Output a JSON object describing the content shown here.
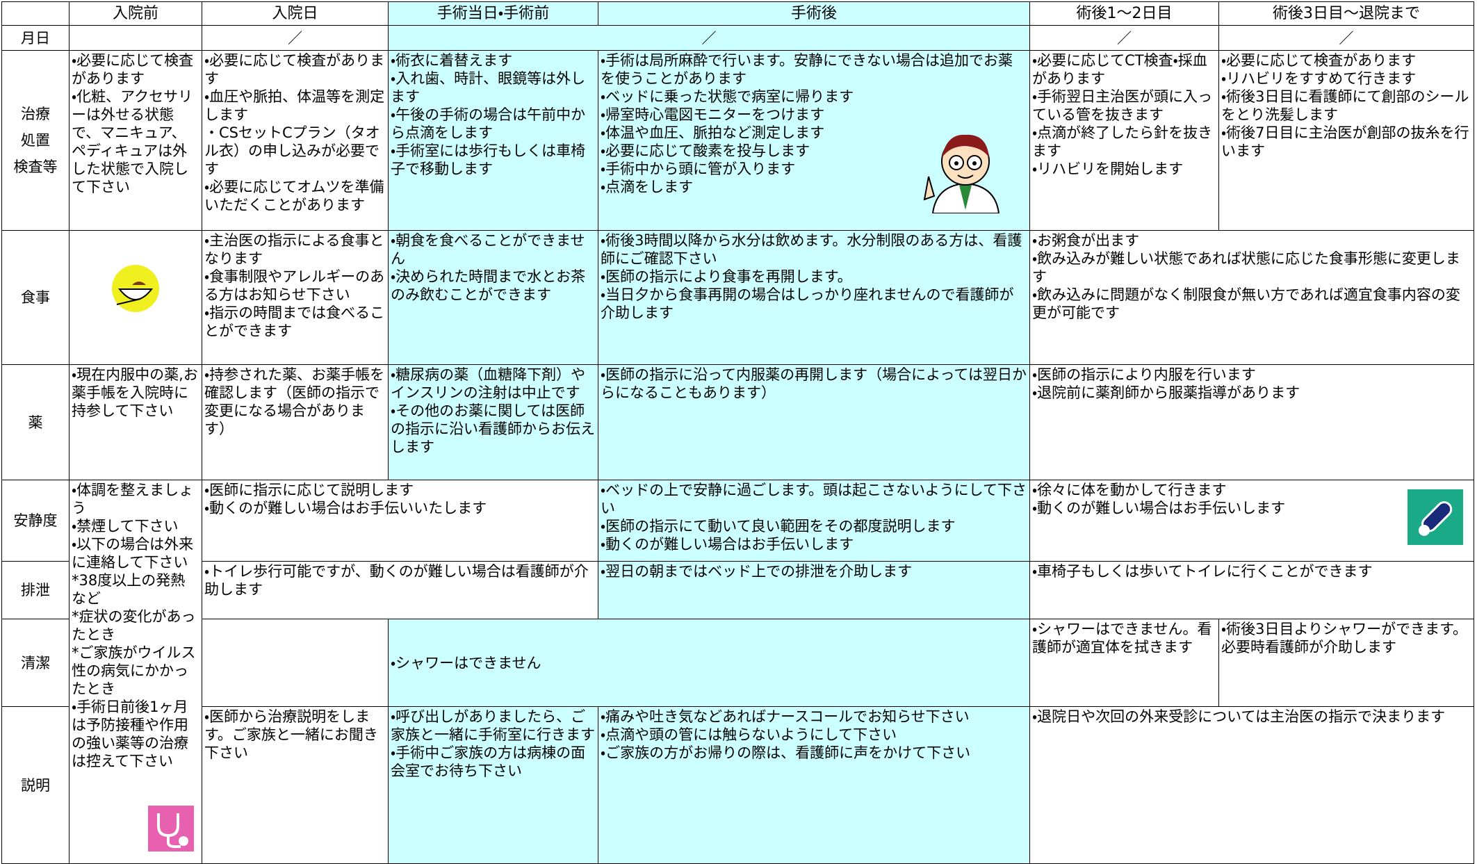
{
  "table": {
    "header": [
      "入院前",
      "入院日",
      "手術当日・手術前",
      "手術後",
      "術後1～2日目",
      "術後3日目～退院まで"
    ],
    "date_row": {
      "label": "月日",
      "cells": [
        "／",
        "／",
        "／",
        "／"
      ]
    },
    "rows": [
      {
        "label": [
          "治療",
          "処置",
          "検査等"
        ],
        "cells": [
          [
            "・必要に応じて検査があります",
            "・化粧、アクセサリーは外せる状態で、マニキュア、ペディキュアは外した状態で入院して下さい"
          ],
          [
            "・必要に応じて検査があります",
            "・血圧や脈拍、体温等を測定します",
            "・CSセットCプラン（タオル衣）の申し込みが必要です",
            "・必要に応じてオムツを準備いただくことがあります"
          ],
          [
            "・術衣に着替えます",
            "・入れ歯、時計、眼鏡等は外します",
            "・午後の手術の場合は午前中から点滴をします",
            "・手術室には歩行もしくは車椅子で移動します"
          ],
          [
            "・手術は局所麻酔で行います。安静にできない場合は追加でお薬を使うことがあります",
            "・ベッドに乗った状態で病室に帰ります",
            "・帰室時心電図モニターをつけます",
            "・体温や血圧、脈拍など測定します",
            "・必要に応じて酸素を投与します",
            "・手術中から頭に管が入ります",
            "・点滴をします"
          ],
          [
            "・必要に応じてCT検査・採血があります",
            "・手術翌日主治医が頭に入っている管を抜きます",
            "・点滴が終了したら針を抜きます",
            "・リハビリを開始します"
          ],
          [
            "・必要に応じて検査があります",
            "・リハビリをすすめて行きます",
            "・術後3日目に看護師にて創部のシールをとり洗髪します",
            "・術後7日目に主治医が創部の抜糸を行います"
          ]
        ]
      },
      {
        "label": [
          "食事"
        ],
        "cells": [
          [],
          [
            "・主治医の指示による食事となります",
            "・食事制限やアレルギーのある方はお知らせ下さい",
            "・指示の時間までは食べることができます"
          ],
          [
            "・朝食を食べることができません",
            "・決められた時間まで水とお茶のみ飲むことができます"
          ],
          [
            "・術後3時間以降から水分は飲めます。水分制限のある方は、看護師にご確認下さい",
            "・医師の指示により食事を再開します。",
            "・当日夕から食事再開の場合はしっかり座れませんので看護師が介助します"
          ],
          [
            "・お粥食が出ます",
            "・飲み込みが難しい状態であれば状態に応じた食事形態に変更します",
            "・飲み込みに問題がなく制限食が無い方であれば適宜食事内容の変更が可能です"
          ]
        ]
      },
      {
        "label": [
          "薬"
        ],
        "cells": [
          [
            "・現在内服中の薬,お薬手帳を入院時に持参して下さい"
          ],
          [
            "・持参された薬、お薬手帳を確認します（医師の指示で変更になる場合があります）"
          ],
          [
            "・糖尿病の薬（血糖降下剤）やインスリンの注射は中止です",
            "・その他のお薬に関しては医師の指示に沿い看護師からお伝えします"
          ],
          [
            "・医師の指示に沿って内服薬の再開します（場合によっては翌日からになることもあります）"
          ],
          [
            "・医師の指示により内服を行います",
            "・退院前に薬剤師から服薬指導があります"
          ]
        ]
      },
      {
        "label": [
          "安静度"
        ],
        "cells": [
          [
            "・体調を整えましょう",
            "・禁煙して下さい",
            "・以下の場合は外来に連絡して下さい",
            "*38度以上の発熱など",
            "*症状の変化があったとき",
            "*ご家族がウイルス性の病気にかかったとき",
            "・手術日前後1ヶ月は予防接種や作用の強い薬等の治療は控えて下さい"
          ],
          [
            "・医師に指示に応じて説明します",
            "・動くのが難しい場合はお手伝いいたします"
          ],
          [
            "・ベッドの上で安静に過ごします。頭は起こさないようにして下さい",
            "・医師の指示にて動いて良い範囲をその都度説明します",
            "・動くのが難しい場合はお手伝いします"
          ],
          [
            "・徐々に体を動かして行きます",
            "・動くのが難しい場合はお手伝いします"
          ]
        ]
      },
      {
        "label": [
          "排泄"
        ],
        "cells": [
          [
            "・トイレ歩行可能ですが、動くのが難しい場合は看護師が介助します"
          ],
          [
            "・翌日の朝まではベッド上での排泄を介助します"
          ],
          [
            "・車椅子もしくは歩いてトイレに行くことができます"
          ]
        ]
      },
      {
        "label": [
          "清潔"
        ],
        "cells": [
          [],
          [
            "・シャワーはできません"
          ],
          [
            "・シャワーはできません。看護師が適宜体を拭きます"
          ],
          [
            "・術後3日目よりシャワーができます。必要時看護師が介助します"
          ]
        ]
      },
      {
        "label": [
          "説明"
        ],
        "cells": [
          [
            "・医師から治療説明をします。ご家族と一緒にお聞き下さい"
          ],
          [
            "・呼び出しがありましたら、ご家族と一緒に手術室に行きます",
            "・手術中ご家族の方は病棟の面会室でお待ち下さい"
          ],
          [
            "・痛みや吐き気などあればナースコールでお知らせ下さい",
            "・点滴や頭の管には触らないようにして下さい",
            "・ご家族の方がお帰りの際は、看護師に声をかけて下さい"
          ],
          [
            "・退院日や次回の外来受診については主治医の指示で決まります"
          ]
        ]
      }
    ]
  }
}
